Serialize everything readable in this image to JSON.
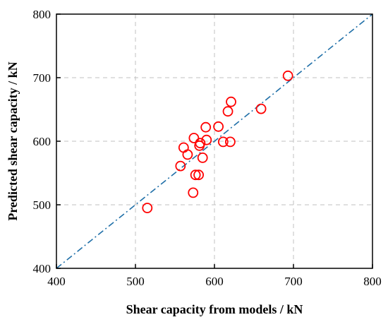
{
  "chart_data": {
    "type": "scatter",
    "title": "",
    "xlabel": "Shear capacity from models / kN",
    "ylabel": "Predicted shear capacity / kN",
    "xlim": [
      400,
      800
    ],
    "ylim": [
      400,
      800
    ],
    "x_ticks": [
      400,
      500,
      600,
      700,
      800
    ],
    "y_ticks": [
      400,
      500,
      600,
      700,
      800
    ],
    "grid": true,
    "marker_color": "#ff0000",
    "reference_line_color": "#1f6fa8",
    "reference_line": {
      "from": [
        400,
        400
      ],
      "to": [
        800,
        800
      ],
      "style": "dash-dot"
    },
    "series": [
      {
        "points": [
          {
            "x": 515,
            "y": 495
          },
          {
            "x": 557,
            "y": 561
          },
          {
            "x": 561,
            "y": 590
          },
          {
            "x": 566,
            "y": 579
          },
          {
            "x": 573,
            "y": 519
          },
          {
            "x": 574,
            "y": 605
          },
          {
            "x": 576,
            "y": 547
          },
          {
            "x": 580,
            "y": 547
          },
          {
            "x": 581,
            "y": 593
          },
          {
            "x": 582,
            "y": 597
          },
          {
            "x": 585,
            "y": 574
          },
          {
            "x": 589,
            "y": 622
          },
          {
            "x": 590,
            "y": 602
          },
          {
            "x": 605,
            "y": 623
          },
          {
            "x": 611,
            "y": 599
          },
          {
            "x": 617,
            "y": 647
          },
          {
            "x": 620,
            "y": 599
          },
          {
            "x": 621,
            "y": 662
          },
          {
            "x": 659,
            "y": 651
          },
          {
            "x": 693,
            "y": 703
          }
        ]
      }
    ]
  }
}
